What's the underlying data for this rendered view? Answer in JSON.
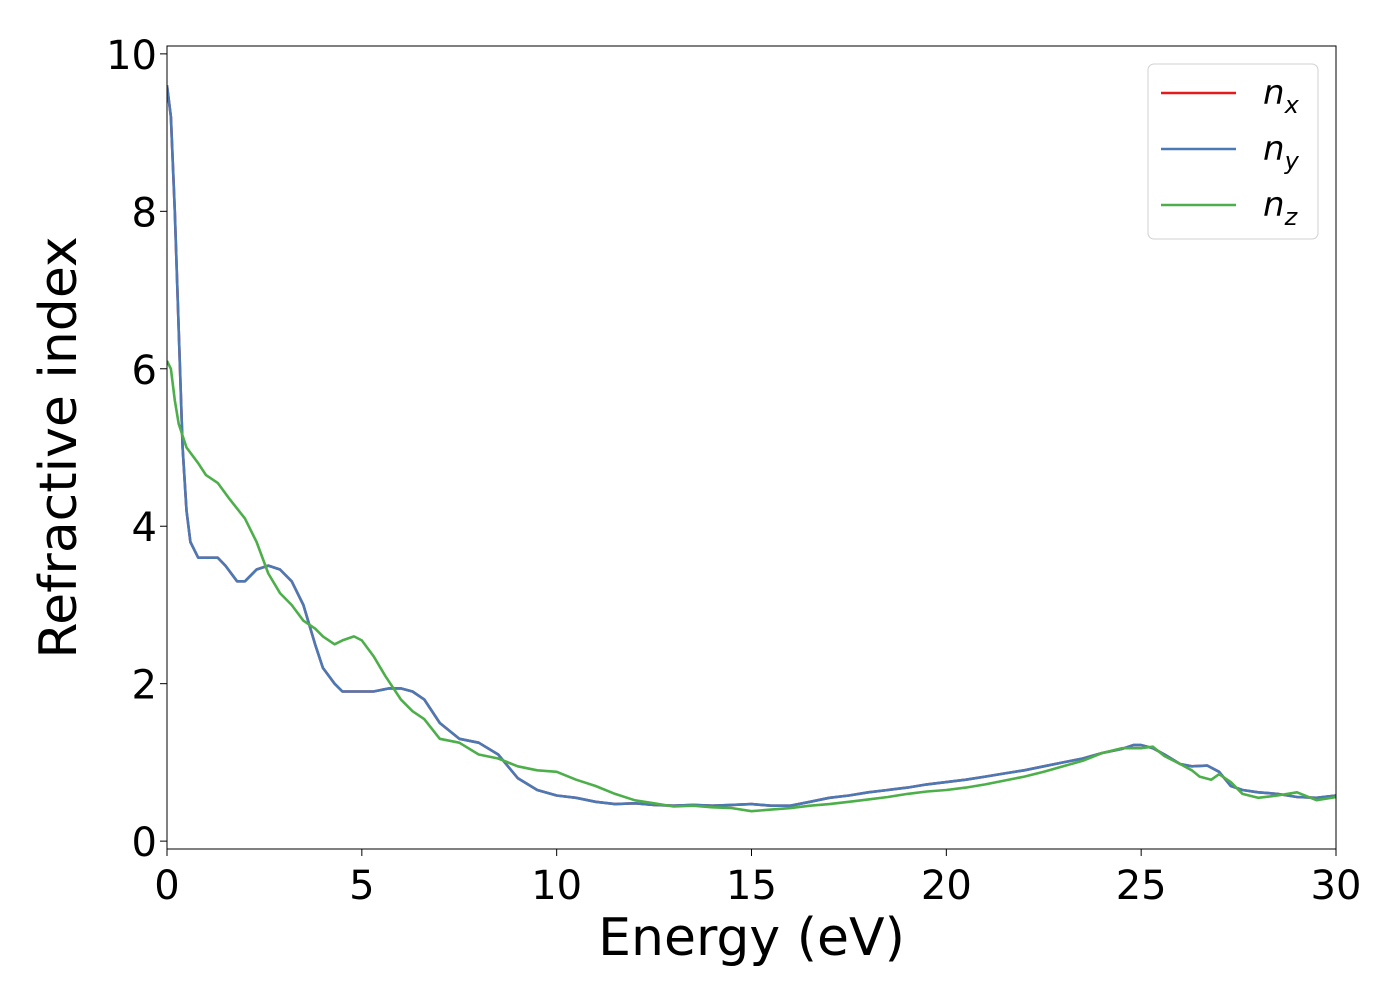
{
  "chart_data": {
    "type": "line",
    "title": "",
    "xlabel": "Energy (eV)",
    "ylabel": "Refractive index",
    "xlim": [
      0,
      30
    ],
    "ylim": [
      -0.1,
      10.1
    ],
    "xticks": [
      0,
      5,
      10,
      15,
      20,
      25,
      30
    ],
    "xtick_labels": [
      "0",
      "5",
      "10",
      "15",
      "20",
      "25",
      "30"
    ],
    "yticks": [
      0,
      2,
      4,
      6,
      8,
      10
    ],
    "ytick_labels": [
      "0",
      "2",
      "4",
      "6",
      "8",
      "10"
    ],
    "grid": false,
    "legend_position": "top-right",
    "series": [
      {
        "name": "n_x",
        "legend_base": "n",
        "legend_sub": "x",
        "color": "#e41a1c",
        "x": [
          0,
          0.1,
          0.2,
          0.3,
          0.4,
          0.5,
          0.6,
          0.7,
          0.8,
          1.0,
          1.3,
          1.5,
          1.8,
          2.0,
          2.3,
          2.6,
          2.9,
          3.2,
          3.5,
          3.8,
          4.0,
          4.3,
          4.5,
          4.8,
          5.0,
          5.3,
          5.7,
          6.0,
          6.3,
          6.6,
          7.0,
          7.5,
          8.0,
          8.5,
          9.0,
          9.5,
          10.0,
          10.5,
          11.0,
          11.5,
          12.0,
          12.5,
          13.0,
          13.5,
          14.0,
          14.5,
          15.0,
          15.5,
          16.0,
          16.5,
          17.0,
          17.5,
          18.0,
          18.5,
          19.0,
          19.5,
          20.0,
          20.5,
          21.0,
          21.5,
          22.0,
          22.5,
          23.0,
          23.5,
          24.0,
          24.5,
          24.8,
          25.0,
          25.3,
          25.6,
          26.0,
          26.3,
          26.7,
          27.0,
          27.3,
          27.6,
          28.0,
          28.5,
          29.0,
          29.5,
          30.0
        ],
        "y": [
          9.6,
          9.2,
          8.0,
          6.5,
          5.0,
          4.2,
          3.8,
          3.7,
          3.6,
          3.6,
          3.6,
          3.5,
          3.3,
          3.3,
          3.45,
          3.5,
          3.45,
          3.3,
          3.0,
          2.5,
          2.2,
          2.0,
          1.9,
          1.9,
          1.9,
          1.9,
          1.94,
          1.94,
          1.9,
          1.8,
          1.5,
          1.3,
          1.25,
          1.1,
          0.8,
          0.65,
          0.58,
          0.55,
          0.5,
          0.47,
          0.48,
          0.46,
          0.45,
          0.46,
          0.45,
          0.46,
          0.47,
          0.45,
          0.45,
          0.5,
          0.55,
          0.58,
          0.62,
          0.65,
          0.68,
          0.72,
          0.75,
          0.78,
          0.82,
          0.86,
          0.9,
          0.95,
          1.0,
          1.05,
          1.12,
          1.17,
          1.22,
          1.22,
          1.18,
          1.1,
          0.98,
          0.95,
          0.96,
          0.88,
          0.7,
          0.65,
          0.62,
          0.6,
          0.56,
          0.55,
          0.58
        ]
      },
      {
        "name": "n_y",
        "legend_base": "n",
        "legend_sub": "y",
        "color": "#4a7ab5",
        "x": [
          0,
          0.1,
          0.2,
          0.3,
          0.4,
          0.5,
          0.6,
          0.7,
          0.8,
          1.0,
          1.3,
          1.5,
          1.8,
          2.0,
          2.3,
          2.6,
          2.9,
          3.2,
          3.5,
          3.8,
          4.0,
          4.3,
          4.5,
          4.8,
          5.0,
          5.3,
          5.7,
          6.0,
          6.3,
          6.6,
          7.0,
          7.5,
          8.0,
          8.5,
          9.0,
          9.5,
          10.0,
          10.5,
          11.0,
          11.5,
          12.0,
          12.5,
          13.0,
          13.5,
          14.0,
          14.5,
          15.0,
          15.5,
          16.0,
          16.5,
          17.0,
          17.5,
          18.0,
          18.5,
          19.0,
          19.5,
          20.0,
          20.5,
          21.0,
          21.5,
          22.0,
          22.5,
          23.0,
          23.5,
          24.0,
          24.5,
          24.8,
          25.0,
          25.3,
          25.6,
          26.0,
          26.3,
          26.7,
          27.0,
          27.3,
          27.6,
          28.0,
          28.5,
          29.0,
          29.5,
          30.0
        ],
        "y": [
          9.6,
          9.2,
          8.0,
          6.5,
          5.0,
          4.2,
          3.8,
          3.7,
          3.6,
          3.6,
          3.6,
          3.5,
          3.3,
          3.3,
          3.45,
          3.5,
          3.45,
          3.3,
          3.0,
          2.5,
          2.2,
          2.0,
          1.9,
          1.9,
          1.9,
          1.9,
          1.94,
          1.94,
          1.9,
          1.8,
          1.5,
          1.3,
          1.25,
          1.1,
          0.8,
          0.65,
          0.58,
          0.55,
          0.5,
          0.47,
          0.48,
          0.46,
          0.45,
          0.46,
          0.45,
          0.46,
          0.47,
          0.45,
          0.45,
          0.5,
          0.55,
          0.58,
          0.62,
          0.65,
          0.68,
          0.72,
          0.75,
          0.78,
          0.82,
          0.86,
          0.9,
          0.95,
          1.0,
          1.05,
          1.12,
          1.17,
          1.22,
          1.22,
          1.18,
          1.1,
          0.98,
          0.95,
          0.96,
          0.88,
          0.7,
          0.65,
          0.62,
          0.6,
          0.56,
          0.55,
          0.58
        ]
      },
      {
        "name": "n_z",
        "legend_base": "n",
        "legend_sub": "z",
        "color": "#4daf4a",
        "x": [
          0,
          0.1,
          0.2,
          0.3,
          0.5,
          0.8,
          1.0,
          1.3,
          1.6,
          2.0,
          2.3,
          2.6,
          2.9,
          3.2,
          3.5,
          3.8,
          4.0,
          4.3,
          4.5,
          4.8,
          5.0,
          5.3,
          5.6,
          6.0,
          6.3,
          6.6,
          7.0,
          7.5,
          8.0,
          8.5,
          9.0,
          9.5,
          10.0,
          10.5,
          11.0,
          11.5,
          12.0,
          12.5,
          13.0,
          13.5,
          14.0,
          14.5,
          15.0,
          15.5,
          16.0,
          16.5,
          17.0,
          17.5,
          18.0,
          18.5,
          19.0,
          19.5,
          20.0,
          20.5,
          21.0,
          21.5,
          22.0,
          22.5,
          23.0,
          23.5,
          24.0,
          24.5,
          25.0,
          25.3,
          25.6,
          26.0,
          26.3,
          26.5,
          26.8,
          27.0,
          27.3,
          27.6,
          28.0,
          28.5,
          29.0,
          29.5,
          30.0
        ],
        "y": [
          6.1,
          6.0,
          5.6,
          5.3,
          5.0,
          4.8,
          4.65,
          4.55,
          4.35,
          4.1,
          3.8,
          3.4,
          3.15,
          3.0,
          2.8,
          2.7,
          2.6,
          2.5,
          2.55,
          2.6,
          2.55,
          2.35,
          2.1,
          1.8,
          1.65,
          1.55,
          1.3,
          1.25,
          1.1,
          1.05,
          0.95,
          0.9,
          0.88,
          0.78,
          0.7,
          0.6,
          0.52,
          0.48,
          0.44,
          0.45,
          0.43,
          0.42,
          0.38,
          0.4,
          0.42,
          0.45,
          0.47,
          0.5,
          0.53,
          0.56,
          0.6,
          0.63,
          0.65,
          0.68,
          0.72,
          0.77,
          0.82,
          0.88,
          0.95,
          1.02,
          1.12,
          1.18,
          1.18,
          1.2,
          1.08,
          0.98,
          0.9,
          0.82,
          0.78,
          0.85,
          0.75,
          0.6,
          0.55,
          0.58,
          0.62,
          0.52,
          0.56
        ]
      }
    ]
  }
}
